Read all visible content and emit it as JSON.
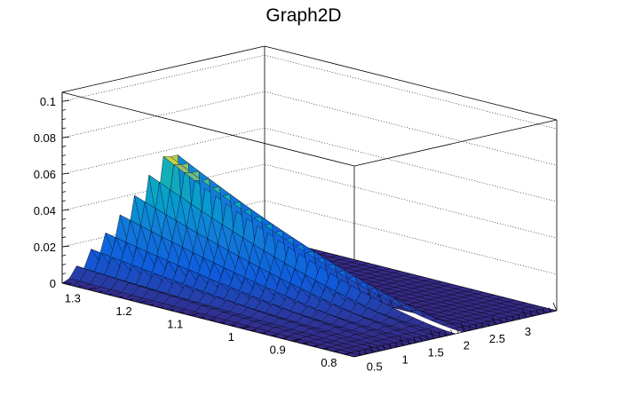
{
  "chart_data": {
    "type": "surface",
    "title": "Graph2D",
    "xlabel": "",
    "ylabel": "",
    "zlabel": "",
    "x_ticks": [
      "0.5",
      "1",
      "1.5",
      "2",
      "2.5",
      "3"
    ],
    "y_ticks": [
      "0.8",
      "0.9",
      "1",
      "1.1",
      "1.2",
      "1.3"
    ],
    "z_ticks": [
      "0",
      "0.02",
      "0.04",
      "0.06",
      "0.08",
      "0.1"
    ],
    "xlim": [
      0.2,
      3.5
    ],
    "ylim": [
      0.78,
      1.35
    ],
    "zlim": [
      0,
      0.105
    ],
    "grid": true,
    "colormap": "viridis-like (dark blue to yellow)",
    "surface_profile": {
      "x": [
        0.2,
        0.6,
        1.0,
        1.4,
        1.6,
        1.75,
        1.85,
        1.95,
        2.05,
        2.3,
        2.8,
        3.5
      ],
      "z_at_max_y": [
        0.0,
        0.013,
        0.025,
        0.04,
        0.048,
        0.055,
        0.057,
        0.056,
        0.0,
        0.0,
        0.0,
        0.0
      ]
    }
  }
}
